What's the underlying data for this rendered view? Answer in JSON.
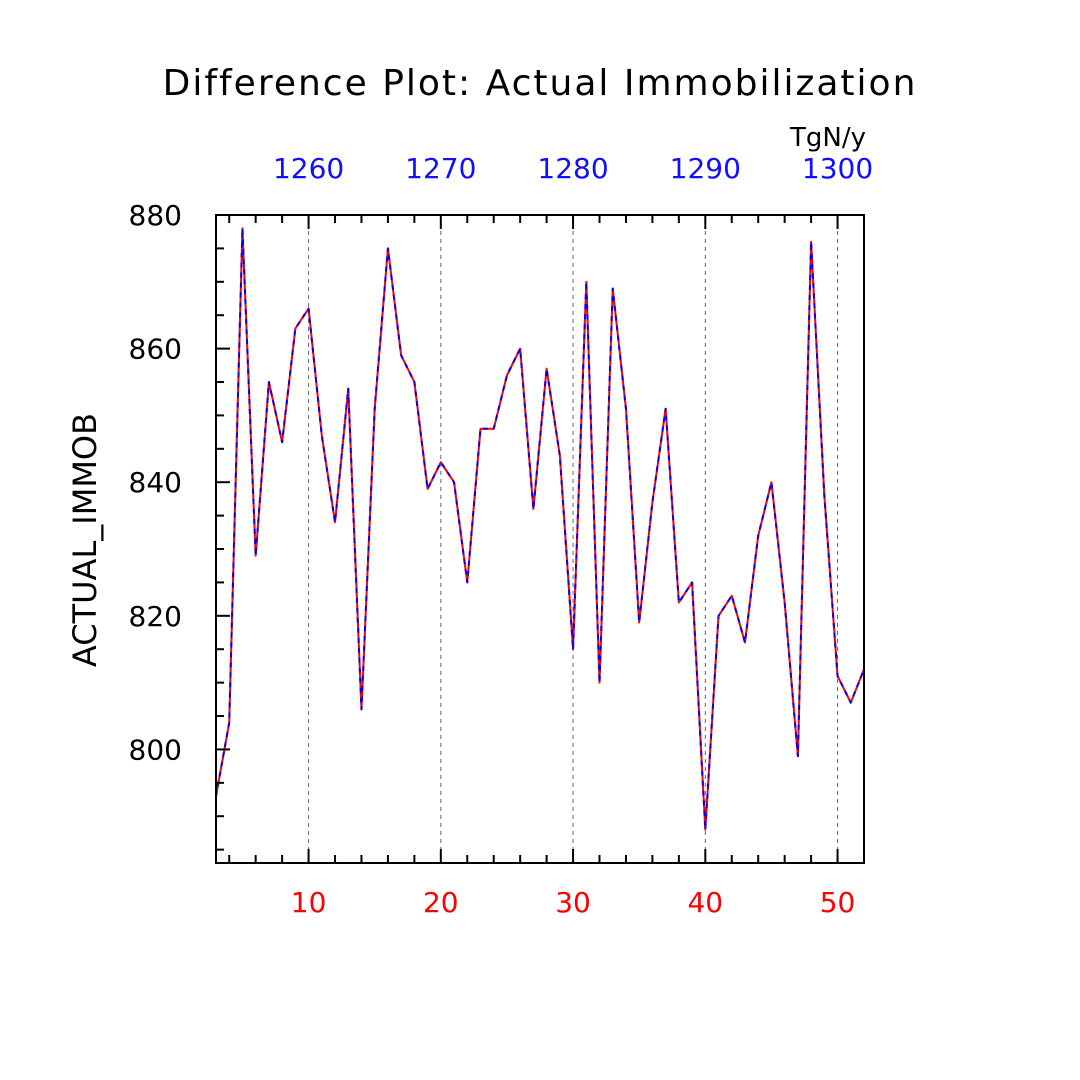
{
  "chart_data": {
    "type": "line",
    "title": "Difference Plot: Actual Immobilization",
    "ylabel": "ACTUAL_IMMOB",
    "units": "TgN/y",
    "xlim": [
      3,
      52
    ],
    "ylim": [
      783,
      880
    ],
    "x_ticks": [
      10,
      20,
      30,
      40,
      50
    ],
    "x_tick_labels": [
      "10",
      "20",
      "30",
      "40",
      "50"
    ],
    "top_ticks": [
      1260,
      1270,
      1280,
      1290,
      1300
    ],
    "top_tick_labels": [
      "1260",
      "1270",
      "1280",
      "1290",
      "1300"
    ],
    "top_axis_offset": 1250,
    "y_ticks": [
      800,
      820,
      840,
      860,
      880
    ],
    "y_tick_labels": [
      "800",
      "820",
      "840",
      "860",
      "880"
    ],
    "grid": "vertical dashed at major x ticks",
    "colors": {
      "series_a": "#ff0000",
      "series_b": "#0000ff",
      "bottom_axis_labels": "#ff0000",
      "top_axis_labels": "#1010ff"
    },
    "x": [
      3,
      4,
      5,
      6,
      7,
      8,
      9,
      10,
      11,
      12,
      13,
      14,
      15,
      16,
      17,
      18,
      19,
      20,
      21,
      22,
      23,
      24,
      25,
      26,
      27,
      28,
      29,
      30,
      31,
      32,
      33,
      34,
      35,
      36,
      37,
      38,
      39,
      40,
      41,
      42,
      43,
      44,
      45,
      46,
      47,
      48,
      49,
      50,
      51,
      52
    ],
    "series": [
      {
        "values": [
          793,
          804,
          878,
          829,
          855,
          846,
          863,
          866,
          847,
          834,
          854,
          806,
          851,
          875,
          859,
          855,
          839,
          843,
          840,
          825,
          848,
          848,
          856,
          860,
          836,
          857,
          844,
          815,
          870,
          810,
          869,
          851,
          819,
          837,
          851,
          822,
          825,
          788,
          820,
          823,
          816,
          832,
          840,
          822,
          799,
          876,
          838,
          811,
          807,
          812
        ]
      },
      {
        "values": [
          793,
          804,
          878,
          829,
          855,
          846,
          863,
          866,
          847,
          834,
          854,
          806,
          851,
          875,
          859,
          855,
          839,
          843,
          840,
          825,
          848,
          848,
          856,
          860,
          836,
          857,
          844,
          815,
          870,
          810,
          869,
          851,
          819,
          837,
          851,
          822,
          825,
          788,
          820,
          823,
          816,
          832,
          840,
          822,
          799,
          876,
          838,
          811,
          807,
          812
        ]
      }
    ]
  }
}
